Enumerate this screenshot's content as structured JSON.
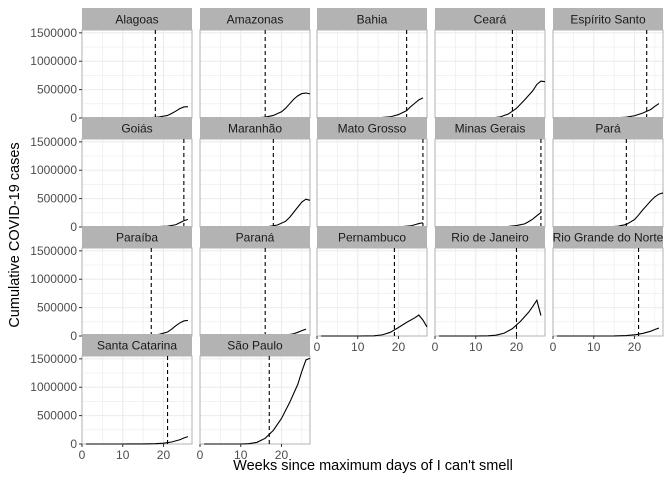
{
  "chart_data": {
    "type": "line",
    "facet_layout": {
      "ncol": 5,
      "nrow": 4
    },
    "xlabel": "Weeks since maximum days of I can't smell",
    "ylabel": "Cumulative COVID-19 cases",
    "xlim": [
      0,
      27
    ],
    "ylim": [
      0,
      1550000
    ],
    "x_ticks": [
      0,
      10,
      20
    ],
    "y_ticks": [
      0,
      500000,
      1000000,
      1500000
    ],
    "y_tick_labels": [
      "0",
      "500000",
      "1000000",
      "1500000"
    ],
    "grid": true,
    "reference_line": "dashed vertical",
    "line_color": "#000000",
    "strip_color": "#b3b3b3",
    "panel_border_color": "#b3b3b3",
    "grid_color": "#ebebeb",
    "panels": [
      {
        "name": "Alagoas",
        "vline": 18,
        "points": [
          [
            1,
            0
          ],
          [
            5,
            0
          ],
          [
            10,
            0
          ],
          [
            15,
            1500
          ],
          [
            17,
            5000
          ],
          [
            19,
            20000
          ],
          [
            21,
            45000
          ],
          [
            22,
            80000
          ],
          [
            23,
            120000
          ],
          [
            24,
            165000
          ],
          [
            25,
            195000
          ],
          [
            26,
            200000
          ]
        ]
      },
      {
        "name": "Amazonas",
        "vline": 16,
        "points": [
          [
            1,
            0
          ],
          [
            5,
            0
          ],
          [
            10,
            0
          ],
          [
            14,
            3000
          ],
          [
            16,
            15000
          ],
          [
            18,
            45000
          ],
          [
            20,
            110000
          ],
          [
            21,
            170000
          ],
          [
            22,
            250000
          ],
          [
            23,
            330000
          ],
          [
            24,
            390000
          ],
          [
            25,
            430000
          ],
          [
            26,
            440000
          ],
          [
            27,
            425000
          ]
        ]
      },
      {
        "name": "Bahia",
        "vline": 22,
        "points": [
          [
            1,
            0
          ],
          [
            5,
            0
          ],
          [
            10,
            0
          ],
          [
            15,
            3000
          ],
          [
            18,
            20000
          ],
          [
            20,
            60000
          ],
          [
            22,
            130000
          ],
          [
            23,
            200000
          ],
          [
            24,
            260000
          ],
          [
            25,
            320000
          ],
          [
            26,
            355000
          ]
        ]
      },
      {
        "name": "Ceará",
        "vline": 19,
        "points": [
          [
            1,
            0
          ],
          [
            5,
            0
          ],
          [
            10,
            0
          ],
          [
            14,
            2000
          ],
          [
            16,
            20000
          ],
          [
            18,
            70000
          ],
          [
            20,
            170000
          ],
          [
            22,
            320000
          ],
          [
            24,
            480000
          ],
          [
            25,
            590000
          ],
          [
            26,
            650000
          ],
          [
            27,
            640000
          ]
        ]
      },
      {
        "name": "Espírito Santo",
        "vline": 23,
        "points": [
          [
            1,
            0
          ],
          [
            5,
            0
          ],
          [
            10,
            0
          ],
          [
            15,
            2000
          ],
          [
            18,
            15000
          ],
          [
            20,
            40000
          ],
          [
            22,
            85000
          ],
          [
            24,
            150000
          ],
          [
            25,
            205000
          ],
          [
            26,
            255000
          ]
        ]
      },
      {
        "name": "Goiás",
        "vline": 25,
        "points": [
          [
            1,
            0
          ],
          [
            5,
            0
          ],
          [
            10,
            0
          ],
          [
            15,
            1000
          ],
          [
            18,
            5000
          ],
          [
            21,
            15000
          ],
          [
            23,
            40000
          ],
          [
            24,
            75000
          ],
          [
            25,
            110000
          ],
          [
            26,
            135000
          ]
        ]
      },
      {
        "name": "Maranhão",
        "vline": 18,
        "points": [
          [
            1,
            0
          ],
          [
            5,
            0
          ],
          [
            10,
            0
          ],
          [
            14,
            2000
          ],
          [
            17,
            10000
          ],
          [
            19,
            35000
          ],
          [
            21,
            100000
          ],
          [
            22,
            170000
          ],
          [
            23,
            260000
          ],
          [
            24,
            350000
          ],
          [
            25,
            440000
          ],
          [
            26,
            490000
          ],
          [
            27,
            470000
          ]
        ]
      },
      {
        "name": "Mato Grosso",
        "vline": 26,
        "points": [
          [
            1,
            0
          ],
          [
            5,
            0
          ],
          [
            10,
            0
          ],
          [
            15,
            1000
          ],
          [
            18,
            3000
          ],
          [
            21,
            8000
          ],
          [
            23,
            20000
          ],
          [
            24,
            40000
          ],
          [
            25,
            60000
          ],
          [
            26,
            75000
          ]
        ]
      },
      {
        "name": "Minas Gerais",
        "vline": 26,
        "points": [
          [
            1,
            0
          ],
          [
            5,
            0
          ],
          [
            10,
            0
          ],
          [
            15,
            2000
          ],
          [
            18,
            10000
          ],
          [
            20,
            25000
          ],
          [
            22,
            55000
          ],
          [
            23,
            95000
          ],
          [
            24,
            140000
          ],
          [
            25,
            200000
          ],
          [
            26,
            255000
          ]
        ]
      },
      {
        "name": "Pará",
        "vline": 18,
        "points": [
          [
            1,
            0
          ],
          [
            5,
            0
          ],
          [
            10,
            0
          ],
          [
            14,
            3000
          ],
          [
            16,
            15000
          ],
          [
            18,
            45000
          ],
          [
            20,
            130000
          ],
          [
            21,
            210000
          ],
          [
            22,
            300000
          ],
          [
            23,
            380000
          ],
          [
            24,
            460000
          ],
          [
            25,
            530000
          ],
          [
            26,
            580000
          ],
          [
            27,
            600000
          ]
        ]
      },
      {
        "name": "Paraíba",
        "vline": 17,
        "points": [
          [
            1,
            0
          ],
          [
            5,
            0
          ],
          [
            10,
            0
          ],
          [
            15,
            2000
          ],
          [
            17,
            10000
          ],
          [
            19,
            30000
          ],
          [
            21,
            70000
          ],
          [
            22,
            120000
          ],
          [
            23,
            180000
          ],
          [
            24,
            230000
          ],
          [
            25,
            265000
          ],
          [
            26,
            275000
          ]
        ]
      },
      {
        "name": "Paraná",
        "vline": 16,
        "points": [
          [
            1,
            0
          ],
          [
            5,
            0
          ],
          [
            10,
            0
          ],
          [
            15,
            1000
          ],
          [
            18,
            5000
          ],
          [
            21,
            15000
          ],
          [
            23,
            40000
          ],
          [
            24,
            65000
          ],
          [
            25,
            95000
          ],
          [
            26,
            120000
          ]
        ]
      },
      {
        "name": "Pernambuco",
        "vline": 19,
        "points": [
          [
            1,
            0
          ],
          [
            5,
            0
          ],
          [
            10,
            0
          ],
          [
            14,
            3000
          ],
          [
            16,
            20000
          ],
          [
            18,
            65000
          ],
          [
            20,
            150000
          ],
          [
            22,
            240000
          ],
          [
            24,
            320000
          ],
          [
            25,
            370000
          ],
          [
            26,
            280000
          ],
          [
            27,
            160000
          ]
        ]
      },
      {
        "name": "Rio de Janeiro",
        "vline": 20,
        "points": [
          [
            1,
            0
          ],
          [
            5,
            0
          ],
          [
            10,
            0
          ],
          [
            13,
            3000
          ],
          [
            15,
            15000
          ],
          [
            17,
            50000
          ],
          [
            19,
            130000
          ],
          [
            21,
            260000
          ],
          [
            23,
            420000
          ],
          [
            24,
            520000
          ],
          [
            25,
            630000
          ],
          [
            26,
            360000
          ]
        ]
      },
      {
        "name": "Rio Grande do Norte",
        "vline": 21,
        "points": [
          [
            1,
            0
          ],
          [
            5,
            0
          ],
          [
            10,
            0
          ],
          [
            15,
            2000
          ],
          [
            18,
            8000
          ],
          [
            20,
            20000
          ],
          [
            22,
            45000
          ],
          [
            24,
            85000
          ],
          [
            25,
            115000
          ],
          [
            26,
            140000
          ]
        ]
      },
      {
        "name": "Santa Catarina",
        "vline": 21,
        "points": [
          [
            1,
            0
          ],
          [
            5,
            0
          ],
          [
            10,
            0
          ],
          [
            15,
            1000
          ],
          [
            18,
            6000
          ],
          [
            20,
            15000
          ],
          [
            22,
            35000
          ],
          [
            24,
            75000
          ],
          [
            25,
            105000
          ],
          [
            26,
            130000
          ]
        ]
      },
      {
        "name": "São Paulo",
        "vline": 17,
        "points": [
          [
            1,
            0
          ],
          [
            5,
            0
          ],
          [
            10,
            0
          ],
          [
            12,
            5000
          ],
          [
            14,
            30000
          ],
          [
            16,
            100000
          ],
          [
            18,
            240000
          ],
          [
            20,
            450000
          ],
          [
            22,
            730000
          ],
          [
            24,
            1050000
          ],
          [
            25,
            1280000
          ],
          [
            26,
            1480000
          ],
          [
            27,
            1510000
          ]
        ]
      }
    ]
  }
}
